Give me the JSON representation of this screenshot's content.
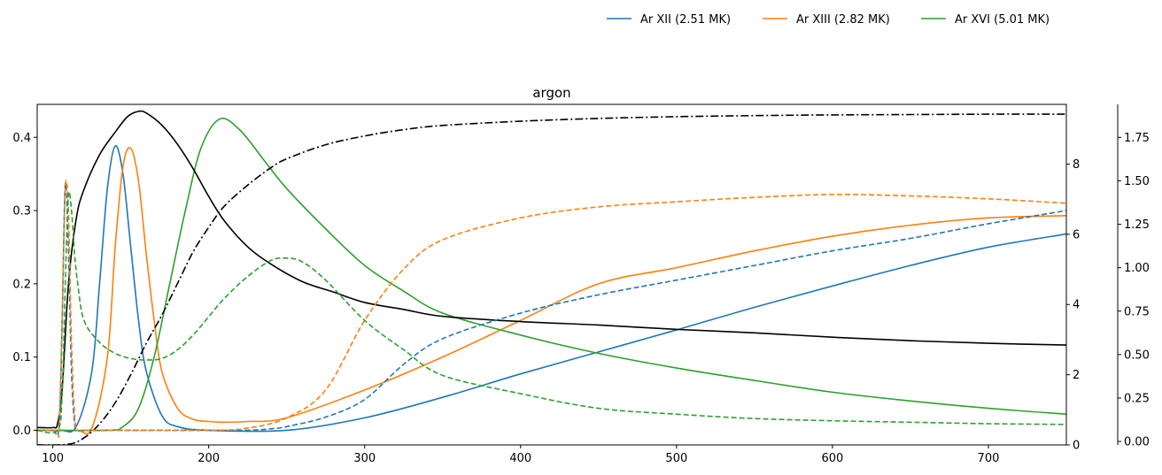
{
  "chart_data": {
    "type": "line",
    "title": "argon",
    "legend_placement": "top-right, above plot",
    "grid": false,
    "x_range": [
      90,
      750
    ],
    "axes": {
      "left": {
        "ylim": [
          -0.02,
          0.445
        ],
        "ticks": [
          0.0,
          0.1,
          0.2,
          0.3,
          0.4
        ],
        "tick_labels": [
          "0.0",
          "0.1",
          "0.2",
          "0.3",
          "0.4"
        ]
      },
      "right_inner": {
        "ylim": [
          0,
          9.7
        ],
        "ticks": [
          0,
          2,
          4,
          6,
          8
        ],
        "tick_labels": [
          "0",
          "2",
          "4",
          "6",
          "8"
        ]
      },
      "right_outer": {
        "ylim": [
          -0.02,
          1.94
        ],
        "ticks": [
          0.0,
          0.25,
          0.5,
          0.75,
          1.0,
          1.25,
          1.5,
          1.75
        ],
        "tick_labels": [
          "0.00",
          "0.25",
          "0.50",
          "0.75",
          "1.00",
          "1.25",
          "1.50",
          "1.75"
        ]
      }
    },
    "x_ticks": [
      100,
      200,
      300,
      400,
      500,
      600,
      700
    ],
    "x_tick_labels": [
      "100",
      "200",
      "300",
      "400",
      "500",
      "600",
      "700"
    ],
    "legend": [
      {
        "label": "Ar XII (2.51 MK)",
        "color": "#1f77b4"
      },
      {
        "label": "Ar XIII (2.82 MK)",
        "color": "#ff7f0e"
      },
      {
        "label": "Ar XVI (5.01 MK)",
        "color": "#2ca02c"
      }
    ],
    "series": [
      {
        "color": "#1f77b4",
        "style": "solid",
        "axis": "left",
        "x": [
          90,
          105,
          115,
          125,
          130,
          135,
          140,
          145,
          150,
          155,
          160,
          170,
          180,
          200,
          250,
          300,
          350,
          400,
          450,
          500,
          550,
          600,
          650,
          700,
          750
        ],
        "y": [
          0.0,
          0.0,
          0.005,
          0.08,
          0.2,
          0.33,
          0.388,
          0.35,
          0.25,
          0.15,
          0.08,
          0.02,
          0.005,
          0.0,
          0.0,
          0.017,
          0.045,
          0.077,
          0.107,
          0.137,
          0.168,
          0.197,
          0.225,
          0.25,
          0.268
        ]
      },
      {
        "color": "#ff7f0e",
        "style": "solid",
        "axis": "left",
        "x": [
          90,
          115,
          125,
          135,
          140,
          145,
          150,
          155,
          160,
          165,
          170,
          180,
          190,
          200,
          210,
          225,
          250,
          300,
          350,
          400,
          450,
          500,
          550,
          600,
          650,
          700,
          750
        ],
        "y": [
          0.0,
          0.0,
          0.003,
          0.1,
          0.25,
          0.36,
          0.385,
          0.34,
          0.24,
          0.15,
          0.08,
          0.03,
          0.015,
          0.012,
          0.011,
          0.012,
          0.017,
          0.055,
          0.1,
          0.15,
          0.2,
          0.222,
          0.245,
          0.265,
          0.28,
          0.29,
          0.293
        ]
      },
      {
        "color": "#2ca02c",
        "style": "solid",
        "axis": "left",
        "x": [
          90,
          135,
          145,
          155,
          165,
          175,
          185,
          195,
          207,
          220,
          235,
          250,
          275,
          300,
          325,
          350,
          400,
          450,
          500,
          550,
          600,
          650,
          700,
          750
        ],
        "y": [
          0.0,
          0.0,
          0.005,
          0.03,
          0.1,
          0.2,
          0.3,
          0.385,
          0.425,
          0.41,
          0.37,
          0.33,
          0.275,
          0.225,
          0.19,
          0.16,
          0.13,
          0.105,
          0.085,
          0.068,
          0.052,
          0.04,
          0.03,
          0.022
        ]
      },
      {
        "color": "#000000",
        "style": "solid",
        "axis": "right_outer",
        "x": [
          90,
          100,
          103,
          106,
          110,
          115,
          120,
          130,
          140,
          148,
          155,
          160,
          170,
          180,
          190,
          200,
          210,
          225,
          240,
          260,
          280,
          300,
          325,
          350,
          400,
          450,
          500,
          550,
          600,
          650,
          700,
          750
        ],
        "y": [
          0.08,
          0.08,
          0.1,
          0.3,
          0.9,
          1.28,
          1.45,
          1.65,
          1.78,
          1.87,
          1.9,
          1.89,
          1.82,
          1.71,
          1.57,
          1.41,
          1.27,
          1.12,
          1.02,
          0.92,
          0.86,
          0.8,
          0.76,
          0.72,
          0.69,
          0.67,
          0.645,
          0.625,
          0.6,
          0.58,
          0.565,
          0.555
        ]
      },
      {
        "color": "#000000",
        "style": "dashdot",
        "axis": "right_inner",
        "x": [
          90,
          110,
          120,
          130,
          140,
          150,
          160,
          170,
          180,
          190,
          200,
          210,
          225,
          240,
          250,
          275,
          300,
          325,
          350,
          400,
          450,
          500,
          550,
          600,
          650,
          700,
          750
        ],
        "y": [
          0.0,
          0.02,
          0.2,
          0.6,
          1.2,
          2.0,
          2.9,
          3.7,
          4.6,
          5.5,
          6.2,
          6.8,
          7.4,
          7.9,
          8.15,
          8.55,
          8.8,
          8.98,
          9.1,
          9.22,
          9.3,
          9.35,
          9.38,
          9.4,
          9.41,
          9.42,
          9.42
        ]
      },
      {
        "color": "#1f77b4",
        "style": "dashed",
        "axis": "left",
        "x": [
          90,
          100,
          104,
          106,
          108,
          110,
          112,
          114,
          116,
          120,
          130,
          200,
          225,
          240,
          250,
          275,
          300,
          325,
          350,
          400,
          450,
          500,
          550,
          600,
          650,
          700,
          750
        ],
        "y": [
          0.0,
          0.0,
          0.005,
          0.15,
          0.335,
          0.25,
          0.08,
          0.01,
          0.0,
          0.0,
          0.0,
          0.0,
          0.0,
          0.002,
          0.005,
          0.018,
          0.042,
          0.09,
          0.125,
          0.16,
          0.185,
          0.205,
          0.225,
          0.245,
          0.262,
          0.282,
          0.3
        ]
      },
      {
        "color": "#ff7f0e",
        "style": "dashed",
        "axis": "left",
        "x": [
          90,
          102,
          104,
          106,
          108,
          110,
          112,
          114,
          116,
          120,
          130,
          200,
          225,
          250,
          275,
          300,
          325,
          350,
          400,
          450,
          500,
          550,
          600,
          650,
          700,
          750
        ],
        "y": [
          0.0,
          0.0,
          0.002,
          0.15,
          0.33,
          0.3,
          0.12,
          0.02,
          0.0,
          0.0,
          0.0,
          0.0,
          0.003,
          0.017,
          0.055,
          0.15,
          0.22,
          0.26,
          0.29,
          0.305,
          0.312,
          0.318,
          0.322,
          0.32,
          0.316,
          0.31
        ]
      },
      {
        "color": "#2ca02c",
        "style": "dashed",
        "axis": "left",
        "x": [
          90,
          103,
          106,
          108,
          110,
          112,
          114,
          116,
          120,
          130,
          140,
          150,
          160,
          170,
          180,
          190,
          200,
          210,
          225,
          240,
          250,
          260,
          275,
          300,
          325,
          350,
          400,
          450,
          500,
          550,
          600,
          650,
          700,
          750
        ],
        "y": [
          0.0,
          0.0,
          0.05,
          0.2,
          0.32,
          0.3,
          0.24,
          0.2,
          0.15,
          0.12,
          0.105,
          0.098,
          0.096,
          0.098,
          0.11,
          0.13,
          0.155,
          0.18,
          0.21,
          0.232,
          0.235,
          0.23,
          0.205,
          0.15,
          0.11,
          0.075,
          0.05,
          0.03,
          0.022,
          0.016,
          0.013,
          0.011,
          0.009,
          0.008
        ]
      }
    ]
  }
}
